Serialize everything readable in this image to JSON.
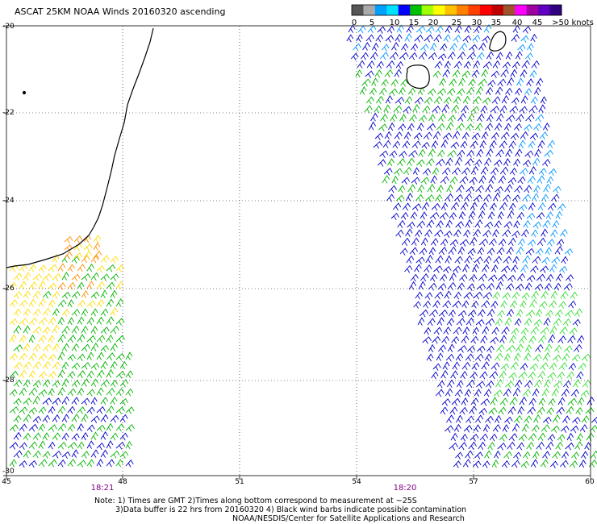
{
  "title": "ASCAT 25KM NOAA Winds 20160320 ascending",
  "legend": {
    "swatches": [
      "#555555",
      "#aaaaaa",
      "#00a0ff",
      "#00e0ff",
      "#0000ff",
      "#00c000",
      "#a0ff00",
      "#ffff00",
      "#ffc000",
      "#ff8000",
      "#ff4000",
      "#ff0000",
      "#c00000",
      "#a0522d",
      "#ff00ff",
      "#a000a0",
      "#6000c0",
      "#300080"
    ],
    "labels": [
      "0",
      "5",
      "10",
      "15",
      "20",
      "25",
      "30",
      "35",
      "40",
      "45",
      ">50 knots"
    ]
  },
  "axes": {
    "lat_labels": [
      "-20",
      "-22",
      "-24",
      "-26",
      "-28",
      "-30"
    ],
    "lon_labels": [
      "45",
      "48",
      "51",
      "54",
      "57",
      "60"
    ],
    "lat_range": [
      -30,
      -20
    ],
    "lon_range": [
      45,
      60
    ],
    "grid": true
  },
  "pass_times": [
    "18:21",
    "18:20"
  ],
  "notes": [
    "Note: 1) Times are GMT 2)Times along bottom correspond to measurement at ~25S",
    "3)Data buffer is 22 hrs from 20160320 4) Black wind barbs indicate possible contamination",
    "NOAA/NESDIS/Center for Satellite Applications and Research"
  ],
  "colors": {
    "calm_blue": "#0000c8",
    "light_blue": "#0096ff",
    "green": "#00b400",
    "bright_green": "#32dc32",
    "yellow": "#ffdc00",
    "orange": "#ff8c00",
    "coast": "#000000"
  }
}
